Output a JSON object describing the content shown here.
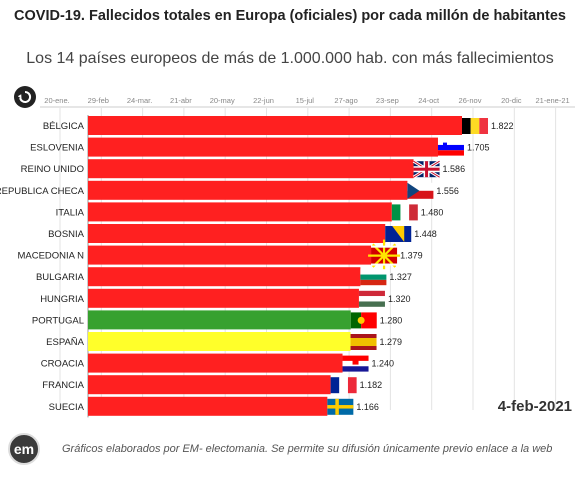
{
  "chart_data": {
    "type": "bar",
    "orientation": "horizontal",
    "title": "COVID-19. Fallecidos totales en Europa (oficiales) por cada millón de habitantes",
    "subtitle": "Los 14 países europeos de más de 1.000.000 hab. con más fallecimientos",
    "categories": [
      "BÉLGICA",
      "ESLOVENIA",
      "REINO UNIDO",
      "REPUBLICA CHECA",
      "ITALIA",
      "BOSNIA",
      "MACEDONIA N",
      "BULGARIA",
      "HUNGRIA",
      "PORTUGAL",
      "ESPAÑA",
      "CROACIA",
      "FRANCIA",
      "SUECIA"
    ],
    "values": [
      1822,
      1705,
      1586,
      1556,
      1480,
      1448,
      1379,
      1327,
      1320,
      1280,
      1279,
      1240,
      1182,
      1166
    ],
    "value_labels": [
      "1.822",
      "1.705",
      "1.586",
      "1.556",
      "1.480",
      "1.448",
      "1.379",
      "1.327",
      "1.320",
      "1.280",
      "1.279",
      "1.240",
      "1.182",
      "1.166"
    ],
    "bar_colors": [
      "#ff2020",
      "#ff2020",
      "#ff2020",
      "#ff2020",
      "#ff2020",
      "#ff2020",
      "#ff2020",
      "#ff2020",
      "#ff2020",
      "#37a12f",
      "#ffff2a",
      "#ff2020",
      "#ff2020",
      "#ff2020"
    ],
    "time_axis_labels": [
      "20-ene.",
      "29-feb",
      "24-mar.",
      "21-abr",
      "20-may",
      "22-jun",
      "15-jul",
      "27-ago",
      "23-sep",
      "24-oct",
      "26-nov",
      "20-dic",
      "21-ene-21"
    ],
    "date": "4-feb-2021"
  },
  "flags": [
    "belgium-flag",
    "slovenia-flag",
    "uk-flag",
    "czech-flag",
    "italy-flag",
    "bosnia-flag",
    "north-macedonia-flag",
    "bulgaria-flag",
    "hungary-flag",
    "portugal-flag",
    "spain-flag",
    "croatia-flag",
    "france-flag",
    "sweden-flag"
  ],
  "controls": {
    "replay_icon": "replay-icon"
  },
  "footer": {
    "logo_text": "em",
    "text": "Gráficos elaborados por EM- electomania. Se permite su difusión únicamente previo enlace a la web"
  }
}
